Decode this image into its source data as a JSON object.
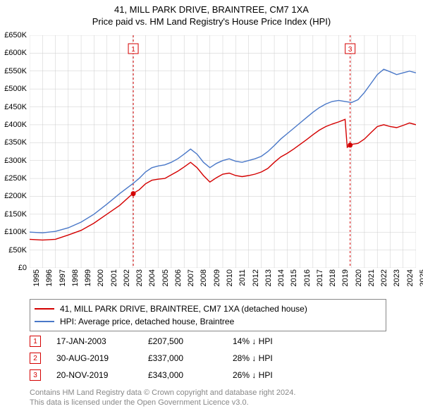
{
  "title": {
    "line1": "41, MILL PARK DRIVE, BRAINTREE, CM7 1XA",
    "line2": "Price paid vs. HM Land Registry's House Price Index (HPI)"
  },
  "chart": {
    "type": "line",
    "background_color": "#ffffff",
    "grid_color": "#cccccc",
    "x_axis": {
      "min_year": 1995,
      "max_year": 2025,
      "tick_years": [
        1995,
        1996,
        1997,
        1998,
        1999,
        2000,
        2001,
        2002,
        2003,
        2004,
        2005,
        2006,
        2007,
        2008,
        2009,
        2010,
        2011,
        2012,
        2013,
        2014,
        2015,
        2016,
        2017,
        2018,
        2019,
        2020,
        2021,
        2022,
        2023,
        2024,
        2025
      ],
      "label_fontsize": 11
    },
    "y_axis": {
      "min": 0,
      "max": 650000,
      "tick_step": 50000,
      "tick_labels": [
        "£0",
        "£50K",
        "£100K",
        "£150K",
        "£200K",
        "£250K",
        "£300K",
        "£350K",
        "£400K",
        "£450K",
        "£500K",
        "£550K",
        "£600K",
        "£650K"
      ],
      "label_fontsize": 11
    },
    "series": {
      "price_paid": {
        "label": "41, MILL PARK DRIVE, BRAINTREE, CM7 1XA (detached house)",
        "color": "#d40000",
        "stroke_width": 1.4,
        "points": [
          [
            1995.0,
            80000
          ],
          [
            1996.0,
            78000
          ],
          [
            1997.0,
            80000
          ],
          [
            1998.0,
            92000
          ],
          [
            1999.0,
            105000
          ],
          [
            2000.0,
            125000
          ],
          [
            2001.0,
            150000
          ],
          [
            2002.0,
            175000
          ],
          [
            2003.0,
            207500
          ],
          [
            2003.5,
            218000
          ],
          [
            2004.0,
            235000
          ],
          [
            2004.5,
            245000
          ],
          [
            2005.0,
            248000
          ],
          [
            2005.5,
            250000
          ],
          [
            2006.0,
            260000
          ],
          [
            2006.5,
            270000
          ],
          [
            2007.0,
            282000
          ],
          [
            2007.5,
            295000
          ],
          [
            2008.0,
            280000
          ],
          [
            2008.5,
            258000
          ],
          [
            2009.0,
            240000
          ],
          [
            2009.5,
            252000
          ],
          [
            2010.0,
            262000
          ],
          [
            2010.5,
            265000
          ],
          [
            2011.0,
            258000
          ],
          [
            2011.5,
            255000
          ],
          [
            2012.0,
            258000
          ],
          [
            2012.5,
            262000
          ],
          [
            2013.0,
            268000
          ],
          [
            2013.5,
            278000
          ],
          [
            2014.0,
            295000
          ],
          [
            2014.5,
            310000
          ],
          [
            2015.0,
            320000
          ],
          [
            2015.5,
            332000
          ],
          [
            2016.0,
            345000
          ],
          [
            2016.5,
            358000
          ],
          [
            2017.0,
            372000
          ],
          [
            2017.5,
            385000
          ],
          [
            2018.0,
            395000
          ],
          [
            2018.5,
            402000
          ],
          [
            2019.0,
            408000
          ],
          [
            2019.5,
            415000
          ],
          [
            2019.66,
            337000
          ],
          [
            2019.89,
            343000
          ],
          [
            2020.0,
            345000
          ],
          [
            2020.5,
            348000
          ],
          [
            2021.0,
            360000
          ],
          [
            2021.5,
            378000
          ],
          [
            2022.0,
            395000
          ],
          [
            2022.5,
            400000
          ],
          [
            2023.0,
            395000
          ],
          [
            2023.5,
            392000
          ],
          [
            2024.0,
            398000
          ],
          [
            2024.5,
            405000
          ],
          [
            2025.0,
            400000
          ]
        ]
      },
      "hpi": {
        "label": "HPI: Average price, detached house, Braintree",
        "color": "#4a78c8",
        "stroke_width": 1.4,
        "points": [
          [
            1995.0,
            100000
          ],
          [
            1996.0,
            98000
          ],
          [
            1997.0,
            102000
          ],
          [
            1998.0,
            112000
          ],
          [
            1999.0,
            128000
          ],
          [
            2000.0,
            150000
          ],
          [
            2001.0,
            178000
          ],
          [
            2002.0,
            208000
          ],
          [
            2003.0,
            235000
          ],
          [
            2003.5,
            250000
          ],
          [
            2004.0,
            268000
          ],
          [
            2004.5,
            280000
          ],
          [
            2005.0,
            285000
          ],
          [
            2005.5,
            288000
          ],
          [
            2006.0,
            295000
          ],
          [
            2006.5,
            305000
          ],
          [
            2007.0,
            318000
          ],
          [
            2007.5,
            332000
          ],
          [
            2008.0,
            318000
          ],
          [
            2008.5,
            295000
          ],
          [
            2009.0,
            280000
          ],
          [
            2009.5,
            292000
          ],
          [
            2010.0,
            300000
          ],
          [
            2010.5,
            305000
          ],
          [
            2011.0,
            298000
          ],
          [
            2011.5,
            295000
          ],
          [
            2012.0,
            300000
          ],
          [
            2012.5,
            305000
          ],
          [
            2013.0,
            312000
          ],
          [
            2013.5,
            325000
          ],
          [
            2014.0,
            342000
          ],
          [
            2014.5,
            360000
          ],
          [
            2015.0,
            375000
          ],
          [
            2015.5,
            390000
          ],
          [
            2016.0,
            405000
          ],
          [
            2016.5,
            420000
          ],
          [
            2017.0,
            435000
          ],
          [
            2017.5,
            448000
          ],
          [
            2018.0,
            458000
          ],
          [
            2018.5,
            465000
          ],
          [
            2019.0,
            468000
          ],
          [
            2019.5,
            465000
          ],
          [
            2020.0,
            462000
          ],
          [
            2020.5,
            470000
          ],
          [
            2021.0,
            490000
          ],
          [
            2021.5,
            515000
          ],
          [
            2022.0,
            540000
          ],
          [
            2022.5,
            555000
          ],
          [
            2023.0,
            548000
          ],
          [
            2023.5,
            540000
          ],
          [
            2024.0,
            545000
          ],
          [
            2024.5,
            550000
          ],
          [
            2025.0,
            545000
          ]
        ]
      }
    },
    "markers": [
      {
        "id": "1",
        "year": 2003.05,
        "value": 207500,
        "color": "#d40000"
      },
      {
        "id": "3",
        "year": 2019.89,
        "value": 343000,
        "color": "#d40000"
      }
    ],
    "dotted_verticals": [
      {
        "year": 2003.05,
        "color": "#d40000"
      },
      {
        "year": 2019.89,
        "color": "#d40000"
      }
    ],
    "marker_dot_color": "#d40000",
    "marker_label_box": {
      "border": "#d40000",
      "fill": "#ffffff"
    }
  },
  "legend": {
    "items": [
      {
        "color": "#d40000",
        "label": "41, MILL PARK DRIVE, BRAINTREE, CM7 1XA (detached house)"
      },
      {
        "color": "#4a78c8",
        "label": "HPI: Average price, detached house, Braintree"
      }
    ]
  },
  "events": [
    {
      "n": "1",
      "date": "17-JAN-2003",
      "price": "£207,500",
      "delta": "14% ↓ HPI",
      "color": "#d40000"
    },
    {
      "n": "2",
      "date": "30-AUG-2019",
      "price": "£337,000",
      "delta": "28% ↓ HPI",
      "color": "#d40000"
    },
    {
      "n": "3",
      "date": "20-NOV-2019",
      "price": "£343,000",
      "delta": "26% ↓ HPI",
      "color": "#d40000"
    }
  ],
  "footer": {
    "line1": "Contains HM Land Registry data © Crown copyright and database right 2024.",
    "line2": "This data is licensed under the Open Government Licence v3.0."
  }
}
